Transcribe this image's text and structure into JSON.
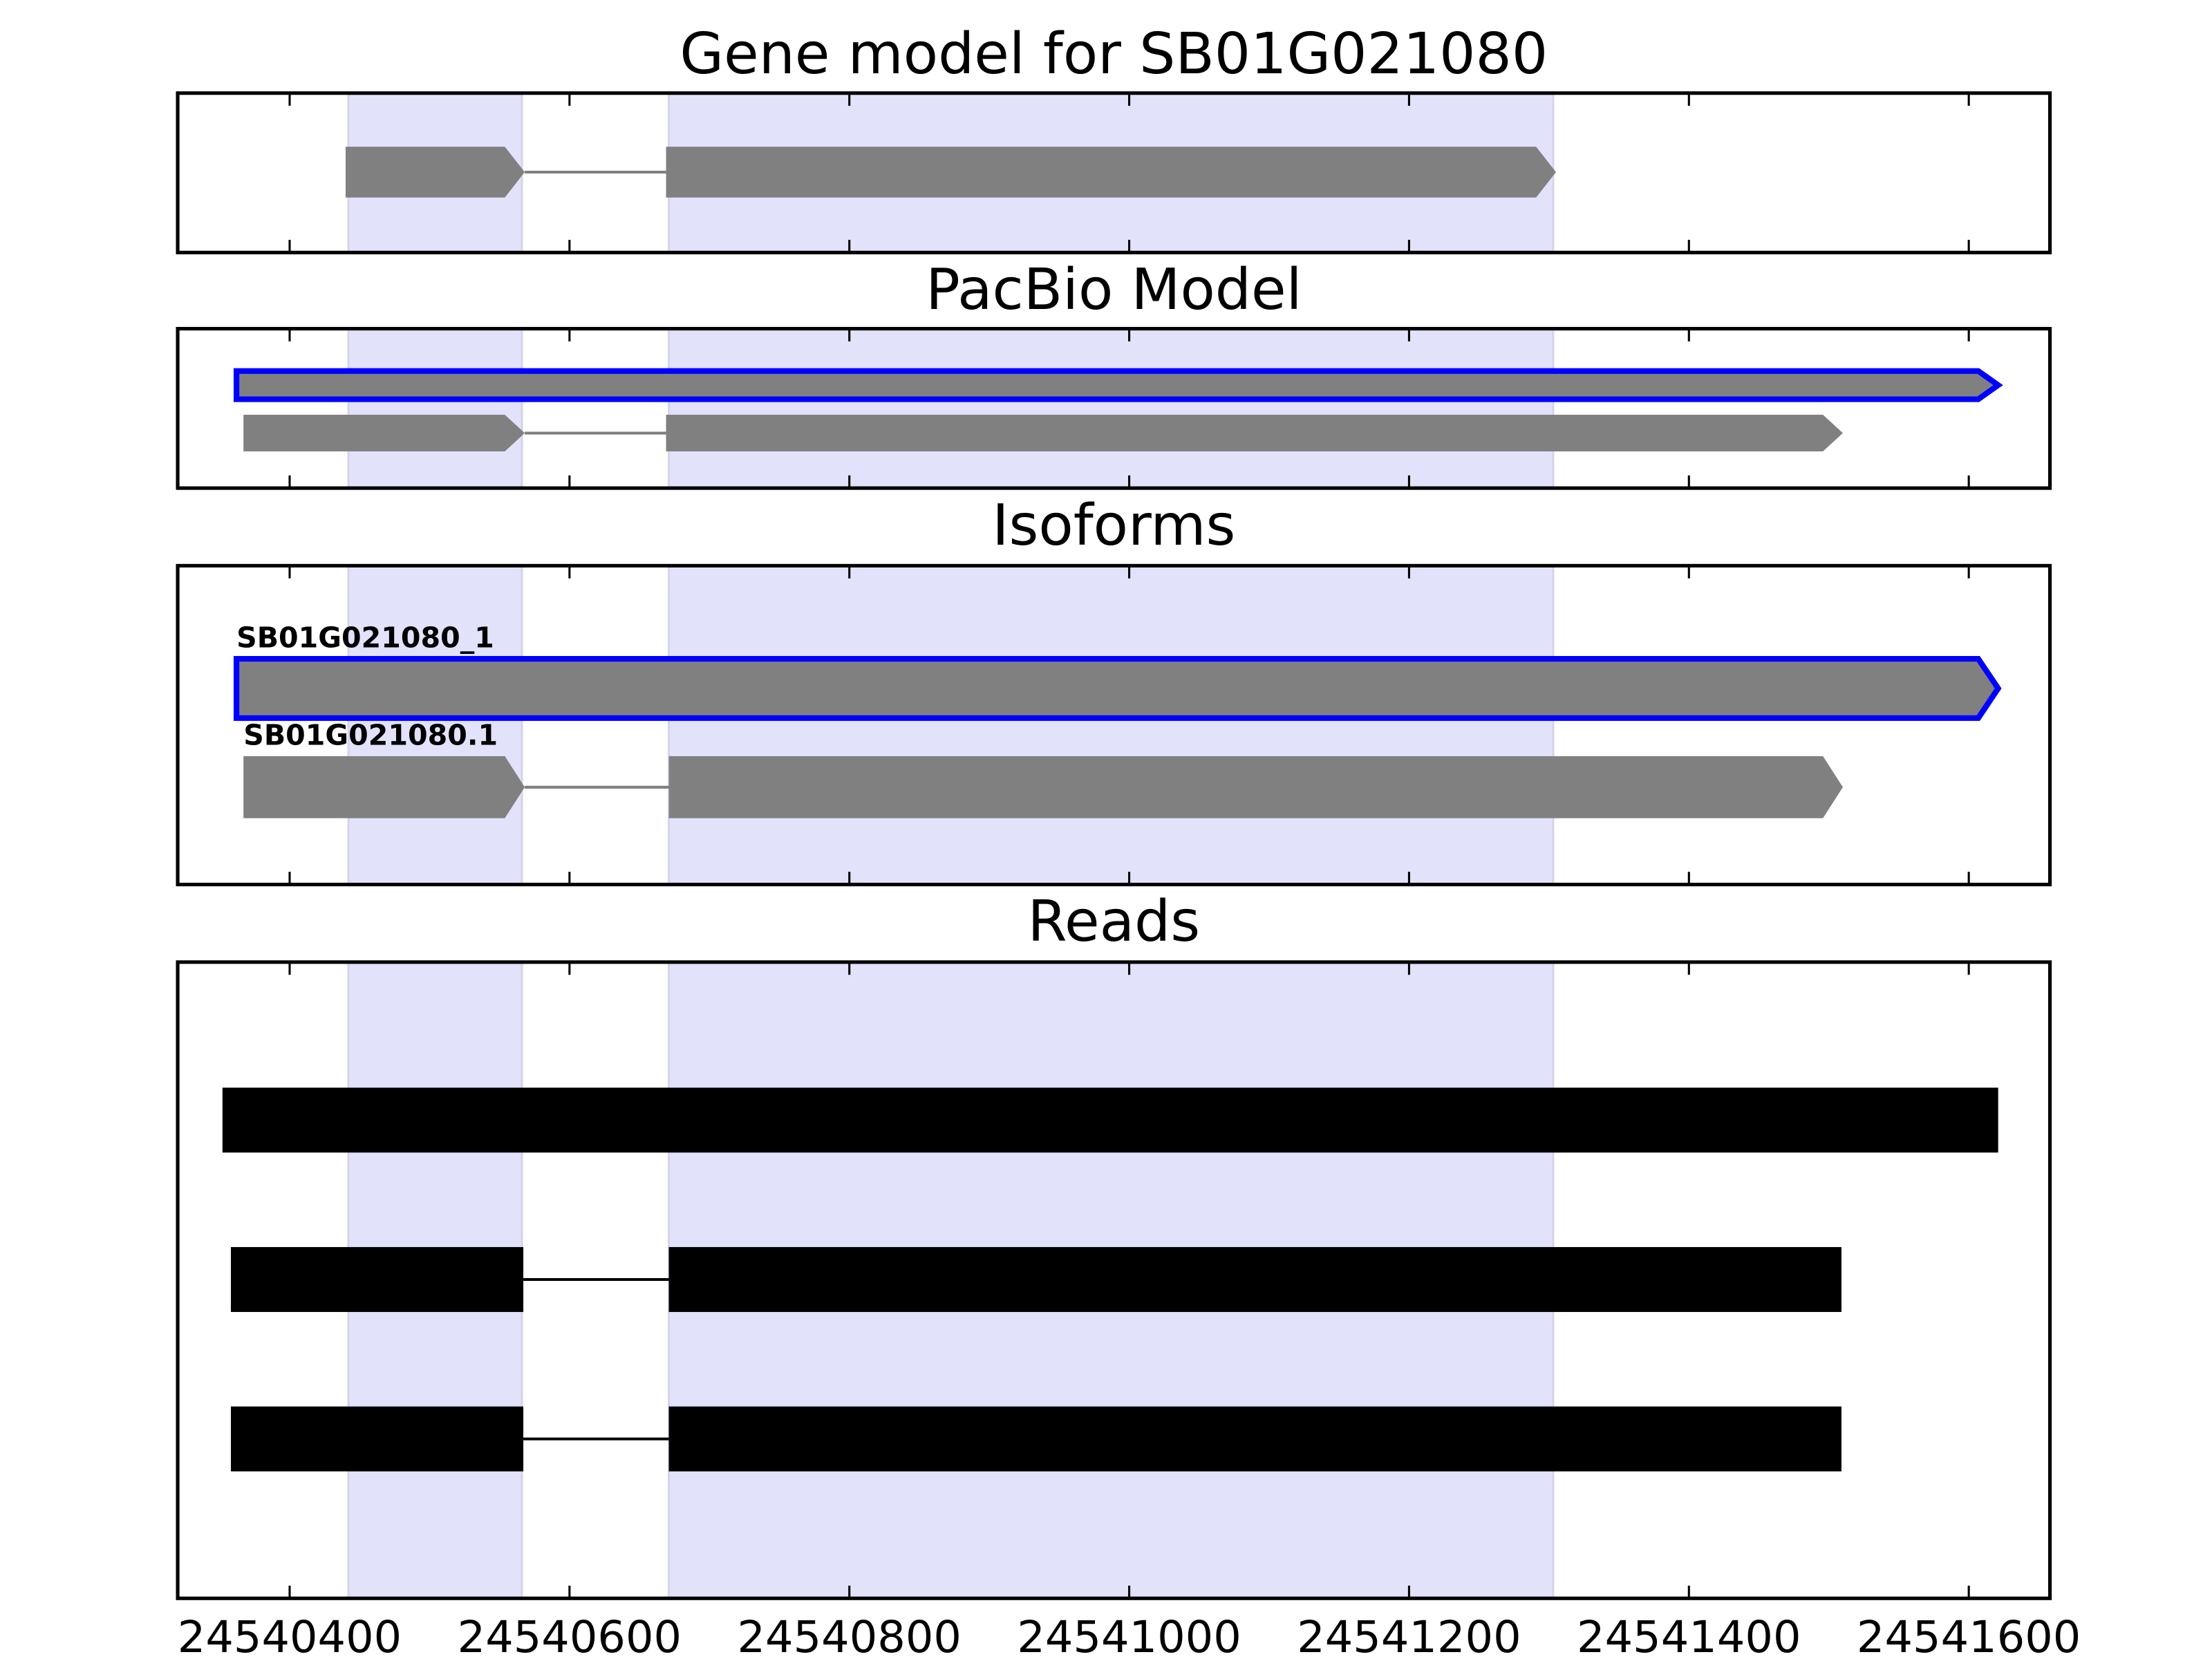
{
  "chart_data": [
    {
      "type": "track",
      "title": "Gene model for SB01G021080",
      "xlim": [
        24540320,
        24541658
      ],
      "shaded": [
        [
          24540442,
          24540566
        ],
        [
          24540671,
          24541303
        ]
      ],
      "shade_color": "#e2e2fb",
      "arrow": true,
      "color": "#808080",
      "edgecolor": "#0000ff",
      "features": [
        {
          "blocks": [
            [
              24540440,
              24540568
            ],
            [
              24540669,
              24541305
            ]
          ],
          "highlight": false
        }
      ]
    },
    {
      "type": "track",
      "title": "PacBio Model",
      "xlim": [
        24540320,
        24541658
      ],
      "shaded": [
        [
          24540442,
          24540566
        ],
        [
          24540671,
          24541303
        ]
      ],
      "shade_color": "#e2e2fb",
      "arrow": true,
      "color": "#808080",
      "edgecolor": "#0000ff",
      "features": [
        {
          "blocks": [
            [
              24540362,
              24541621
            ]
          ],
          "highlight": true
        },
        {
          "blocks": [
            [
              24540367,
              24540568
            ],
            [
              24540669,
              24541510
            ]
          ],
          "highlight": false
        }
      ]
    },
    {
      "type": "track",
      "title": "Isoforms",
      "xlim": [
        24540320,
        24541658
      ],
      "shaded": [
        [
          24540442,
          24540566
        ],
        [
          24540671,
          24541303
        ]
      ],
      "shade_color": "#e2e2fb",
      "arrow": true,
      "color": "#808080",
      "edgecolor": "#0000ff",
      "features": [
        {
          "label": "SB01G021080_1",
          "blocks": [
            [
              24540362,
              24541621
            ]
          ],
          "highlight": true
        },
        {
          "label": "SB01G021080.1",
          "blocks": [
            [
              24540367,
              24540568
            ],
            [
              24540671,
              24541510
            ]
          ],
          "highlight": false
        }
      ]
    },
    {
      "type": "track",
      "title": "Reads",
      "xlim": [
        24540320,
        24541658
      ],
      "xticks": [
        24540400,
        24540600,
        24540800,
        24541000,
        24541200,
        24541400,
        24541600
      ],
      "shaded": [
        [
          24540442,
          24540566
        ],
        [
          24540671,
          24541303
        ]
      ],
      "shade_color": "#e2e2fb",
      "arrow": false,
      "color": "#000000",
      "edgecolor": "#000000",
      "features": [
        {
          "blocks": [
            [
              24540352,
              24541621
            ]
          ],
          "highlight": false
        },
        {
          "blocks": [
            [
              24540358,
              24540567
            ],
            [
              24540671,
              24541509
            ]
          ],
          "highlight": false
        },
        {
          "blocks": [
            [
              24540358,
              24540567
            ],
            [
              24540671,
              24541509
            ]
          ],
          "highlight": false
        }
      ]
    }
  ]
}
